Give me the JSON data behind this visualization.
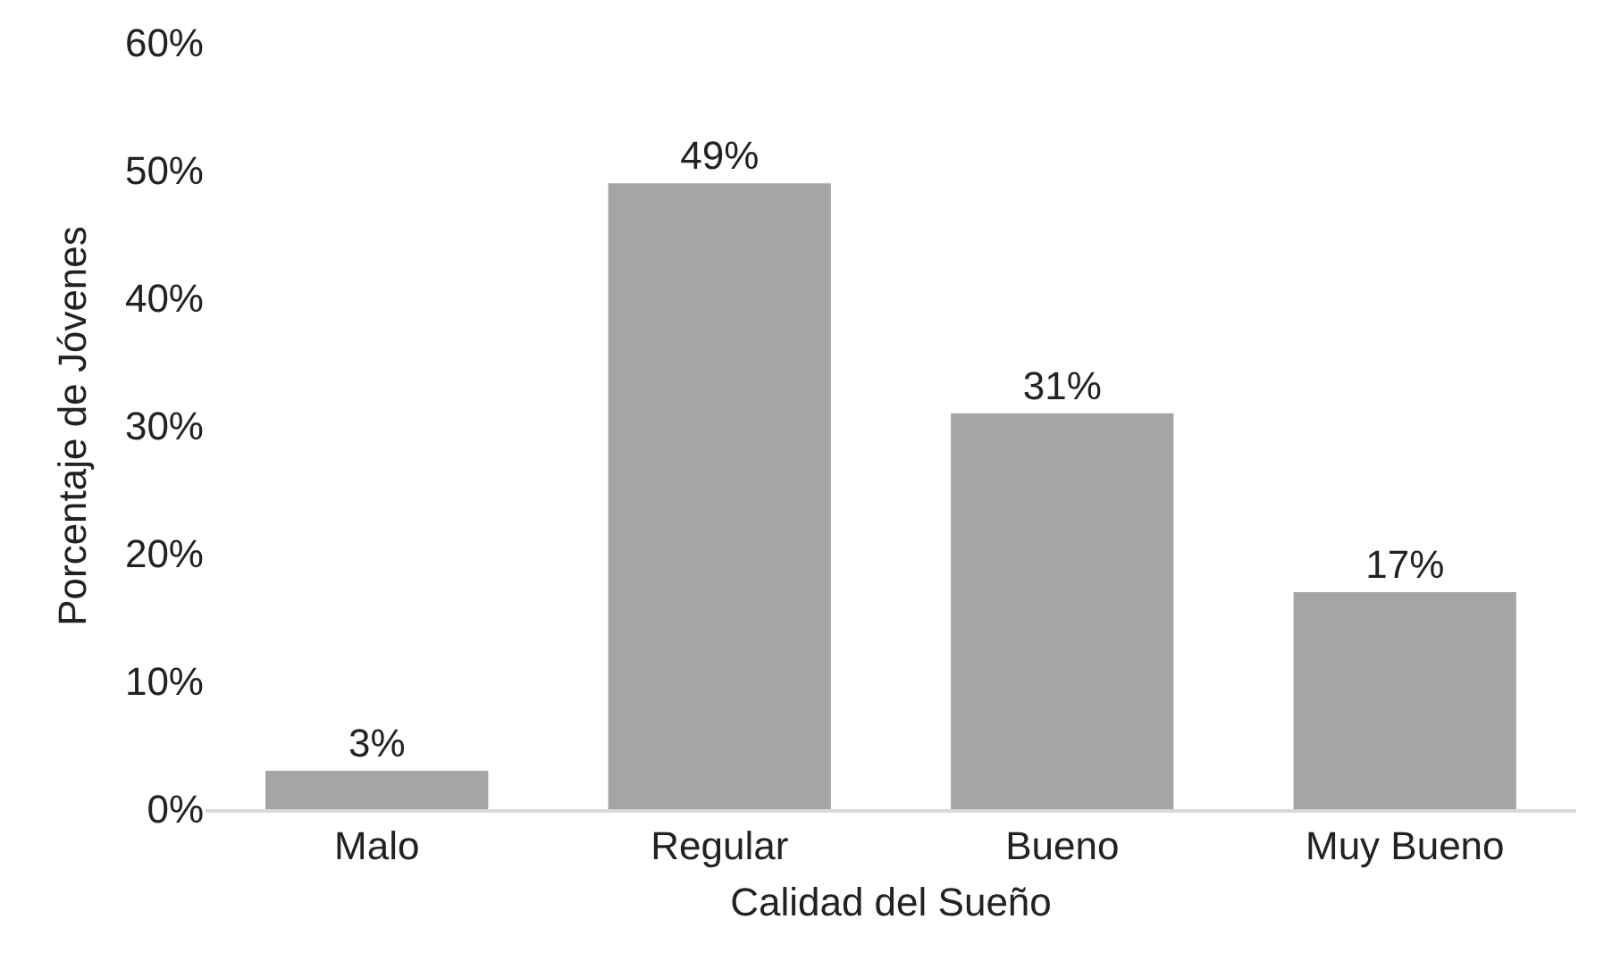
{
  "chart_data": {
    "type": "bar",
    "xlabel": "Calidad del Sueño",
    "ylabel": "Porcentaje de Jóvenes",
    "categories": [
      "Malo",
      "Regular",
      "Bueno",
      "Muy Bueno"
    ],
    "values": [
      3,
      49,
      31,
      17
    ],
    "value_labels": [
      "3%",
      "49%",
      "31%",
      "17%"
    ],
    "color": "#a5a5a5",
    "ylim": [
      0,
      60
    ],
    "yticks": [
      {
        "value": 0,
        "label": "0%"
      },
      {
        "value": 10,
        "label": "10%"
      },
      {
        "value": 20,
        "label": "20%"
      },
      {
        "value": 30,
        "label": "30%"
      },
      {
        "value": 40,
        "label": "40%"
      },
      {
        "value": 50,
        "label": "50%"
      },
      {
        "value": 60,
        "label": "60%"
      }
    ],
    "grid": false
  }
}
